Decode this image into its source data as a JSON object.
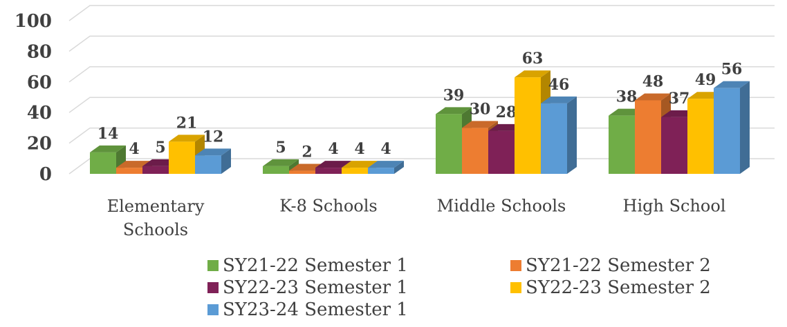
{
  "chart_data": {
    "type": "bar3d",
    "categories": [
      "Elementary Schools",
      "K-8 Schools",
      "Middle Schools",
      "High School"
    ],
    "series": [
      {
        "name": "SY21-22 Semester 1",
        "color": "#70ad47",
        "values": [
          14,
          5,
          39,
          38
        ]
      },
      {
        "name": "SY21-22 Semester 2",
        "color": "#ed7d31",
        "values": [
          4,
          2,
          30,
          48
        ]
      },
      {
        "name": "SY22-23 Semester 1",
        "color": "#7f2157",
        "values": [
          5,
          4,
          28,
          37
        ]
      },
      {
        "name": "SY22-23 Semester 2",
        "color": "#ffc000",
        "values": [
          21,
          4,
          63,
          49
        ]
      },
      {
        "name": "SY23-24 Semester 1",
        "color": "#5b9bd5",
        "values": [
          12,
          4,
          46,
          56
        ]
      }
    ],
    "ylim": [
      0,
      100
    ],
    "yticks": [
      0,
      20,
      40,
      60,
      80,
      100
    ],
    "grid": true,
    "legend": "bottom"
  }
}
